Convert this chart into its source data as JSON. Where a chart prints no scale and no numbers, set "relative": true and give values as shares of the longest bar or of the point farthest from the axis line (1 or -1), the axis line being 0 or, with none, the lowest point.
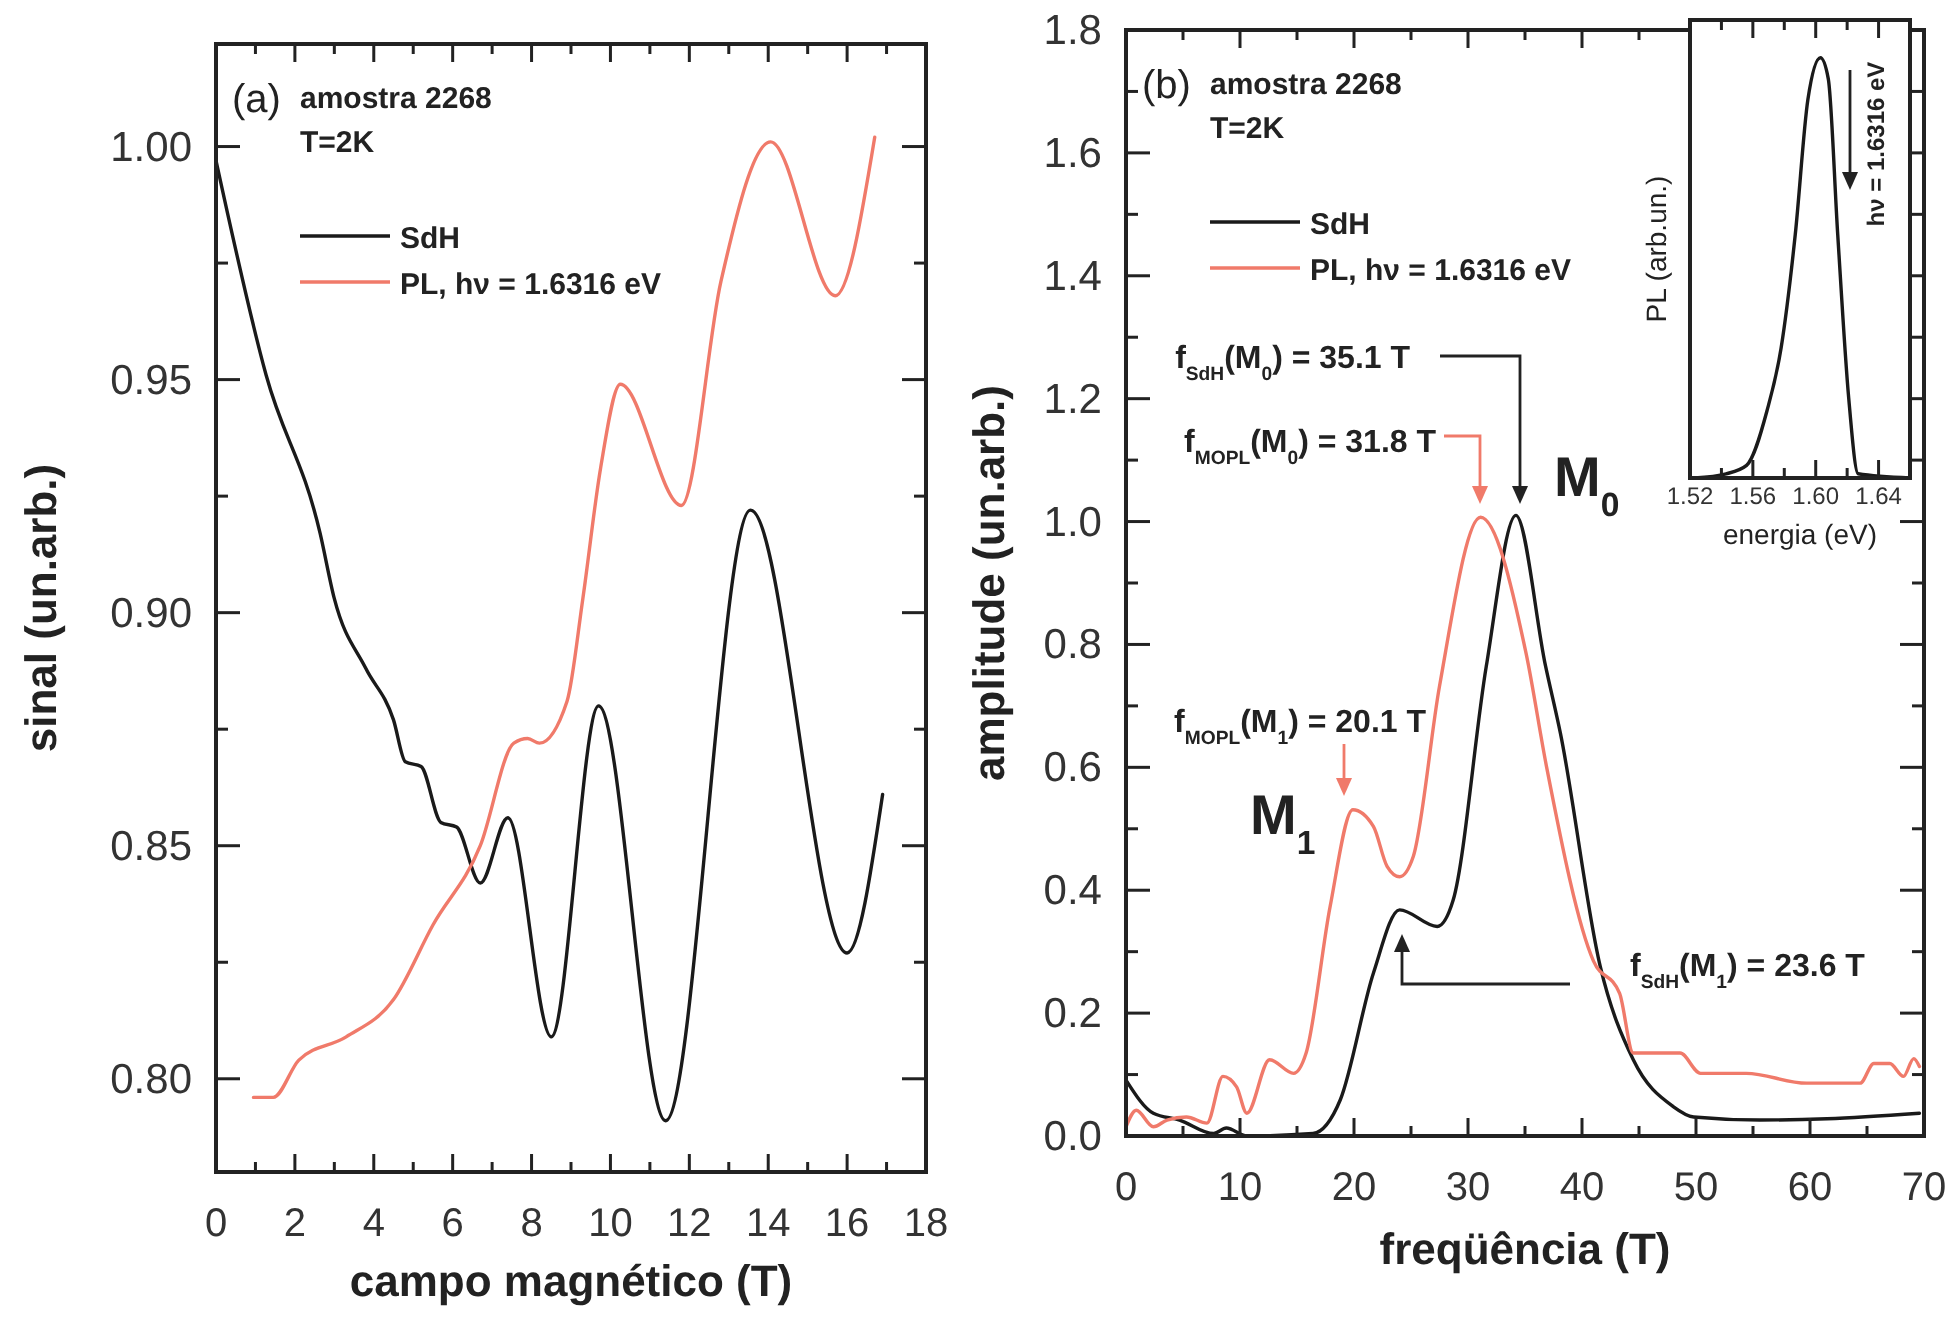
{
  "chart_data": [
    {
      "type": "line",
      "xlabel": "campo magnético (T)",
      "ylabel": "sinal (un.arb.)",
      "xlim": [
        0,
        18
      ],
      "xticks": [
        0,
        {
          "value": 1,
          "label": null
        },
        2,
        {
          "value": 3,
          "label": null
        },
        4,
        {
          "value": 5,
          "label": null
        },
        6,
        {
          "value": 7,
          "label": null
        },
        8,
        {
          "value": 9,
          "label": null
        },
        10,
        {
          "value": 11,
          "label": null
        },
        12,
        {
          "value": 13,
          "label": null
        },
        14,
        {
          "value": 15,
          "label": null
        },
        16,
        {
          "value": 17,
          "label": null
        },
        18
      ],
      "ylim": [
        0.78,
        1.022
      ],
      "yticks": [
        {
          "value": 0.8,
          "label": "0.80"
        },
        {
          "value": 0.825,
          "label": null
        },
        0.85,
        {
          "value": 0.875,
          "label": null
        },
        {
          "value": 0.9,
          "label": "0.90"
        },
        {
          "value": 0.925,
          "label": null
        },
        0.95,
        {
          "value": 0.975,
          "label": null
        },
        {
          "value": 1,
          "label": "1.00"
        }
      ],
      "legend": "top left",
      "annotations": [
        "(a)",
        "amostra 2268",
        "T=2K"
      ],
      "series": [
        {
          "name": "SdH",
          "color": "#1a1a1a",
          "x": [
            0,
            1.27,
            2.64,
            3.0,
            3.8,
            4.5,
            4.8,
            5.2,
            5.7,
            6.1,
            6.7,
            7.4,
            8.5,
            9.7,
            11.4,
            13.55,
            16.0,
            16.9
          ],
          "values": [
            0.997,
            0.951,
            0.917,
            0.903,
            0.888,
            0.877,
            0.868,
            0.867,
            0.855,
            0.854,
            0.842,
            0.856,
            0.809,
            0.88,
            0.791,
            0.922,
            0.827,
            0.861
          ]
        },
        {
          "name": "PL, hν = 1.6316 eV",
          "color": "#f07a6a",
          "x": [
            0.95,
            1.45,
            2.1,
            3.3,
            4.5,
            5.5,
            6.7,
            7.55,
            7.9,
            8.2,
            8.9,
            9.3,
            9.75,
            10.25,
            11.8,
            12.8,
            14.06,
            15.7,
            16.7
          ],
          "values": [
            0.796,
            0.796,
            0.804,
            0.809,
            0.817,
            0.833,
            0.85,
            0.872,
            0.873,
            0.872,
            0.881,
            0.903,
            0.931,
            0.949,
            0.923,
            0.971,
            1.001,
            0.968,
            1.002
          ]
        }
      ]
    },
    {
      "type": "line",
      "xlabel": "freqüência (T)",
      "ylabel": "amplitude (un.arb.)",
      "xlim": [
        0,
        70
      ],
      "xticks": [
        0,
        {
          "value": 5,
          "label": null
        },
        10,
        {
          "value": 15,
          "label": null
        },
        20,
        {
          "value": 25,
          "label": null
        },
        30,
        {
          "value": 35,
          "label": null
        },
        40,
        {
          "value": 45,
          "label": null
        },
        50,
        {
          "value": 55,
          "label": null
        },
        60,
        {
          "value": 65,
          "label": null
        },
        70
      ],
      "ylim": [
        0,
        1.8
      ],
      "yticks": [
        {
          "value": 0,
          "label": "0.0"
        },
        {
          "value": 0.1,
          "label": null
        },
        0.2,
        {
          "value": 0.3,
          "label": null
        },
        0.4,
        {
          "value": 0.5,
          "label": null
        },
        0.6,
        {
          "value": 0.7,
          "label": null
        },
        0.8,
        {
          "value": 0.9,
          "label": null
        },
        {
          "value": 1,
          "label": "1.0"
        },
        {
          "value": 1.1,
          "label": null
        },
        1.2,
        {
          "value": 1.3,
          "label": null
        },
        1.4,
        {
          "value": 1.5,
          "label": null
        },
        1.6,
        {
          "value": 1.7,
          "label": null
        },
        1.8
      ],
      "legend": "top left",
      "annotations": [
        "(b)",
        "amostra 2268",
        "T=2K",
        "f$_{SdH}$(M$_{0}$) = 35.1 T",
        "f$_{MOPL}$(M$_{0}$) = 31.8 T",
        "M$_{0}$",
        "f$_{MOPL}$(M$_{1}$) = 20.1 T",
        "M$_{1}$",
        "f$_{SdH}$(M$_{1}$) = 23.6 T"
      ],
      "series": [
        {
          "name": "SdH",
          "color": "#1a1a1a",
          "x": [
            0,
            2.4,
            4.7,
            7.7,
            8.8,
            10.6,
            16.4,
            18.8,
            21.7,
            24.0,
            27.3,
            28.7,
            31.6,
            34.2,
            36.8,
            38.1,
            41.6,
            44.5,
            48.0,
            49.8,
            55.6,
            61.5,
            69.6
          ],
          "values": [
            0.091,
            0.037,
            0.026,
            0.004,
            0.013,
            0.0,
            0.004,
            0.059,
            0.265,
            0.368,
            0.341,
            0.384,
            0.764,
            1.01,
            0.765,
            0.656,
            0.276,
            0.124,
            0.048,
            0.031,
            0.026,
            0.028,
            0.037
          ]
        },
        {
          "name": "PL, hν = 1.6316 eV",
          "color": "#f07a6a",
          "x": [
            0,
            0.9,
            2.4,
            3.6,
            5.3,
            7.1,
            8.5,
            9.7,
            10.6,
            12.6,
            14.7,
            15.8,
            17.9,
            19.9,
            21.7,
            22.9,
            24.0,
            25.2,
            27.5,
            31.1,
            35.1,
            36.9,
            41.0,
            43.3,
            44.5,
            48.6,
            50.4,
            54.4,
            59.7,
            64.4,
            65.6,
            67.0,
            68.2,
            69.1,
            69.6
          ],
          "values": [
            0.015,
            0.042,
            0.015,
            0.026,
            0.031,
            0.021,
            0.097,
            0.08,
            0.037,
            0.124,
            0.102,
            0.135,
            0.373,
            0.531,
            0.504,
            0.439,
            0.422,
            0.455,
            0.732,
            1.007,
            0.785,
            0.6,
            0.285,
            0.232,
            0.135,
            0.135,
            0.102,
            0.102,
            0.086,
            0.086,
            0.118,
            0.118,
            0.097,
            0.126,
            0.113
          ]
        }
      ]
    },
    {
      "type": "line",
      "relative": true,
      "xlabel": "energia (eV)",
      "ylabel": "PL (arb.un.)",
      "tick_labels": "x",
      "xlim": [
        1.52,
        1.66
      ],
      "xticks": [
        1.52,
        {
          "value": 1.54,
          "label": null
        },
        1.56,
        {
          "value": 1.58,
          "label": null
        },
        {
          "value": 1.6,
          "label": "1.60"
        },
        {
          "value": 1.62,
          "label": null
        },
        1.64
      ],
      "annotations": [
        "hν = 1.6316 eV"
      ],
      "series": [
        {
          "color": "#1a1a1a",
          "x": [
            1.523,
            1.543,
            1.556,
            1.569,
            1.578,
            1.587,
            1.595,
            1.603,
            1.608,
            1.614,
            1.621,
            1.627,
            1.66
          ],
          "values": [
            0.0,
            0.01,
            0.03,
            0.16,
            0.31,
            0.58,
            0.9,
            1.0,
            0.95,
            0.58,
            0.19,
            0.01,
            0.0
          ]
        }
      ]
    }
  ]
}
